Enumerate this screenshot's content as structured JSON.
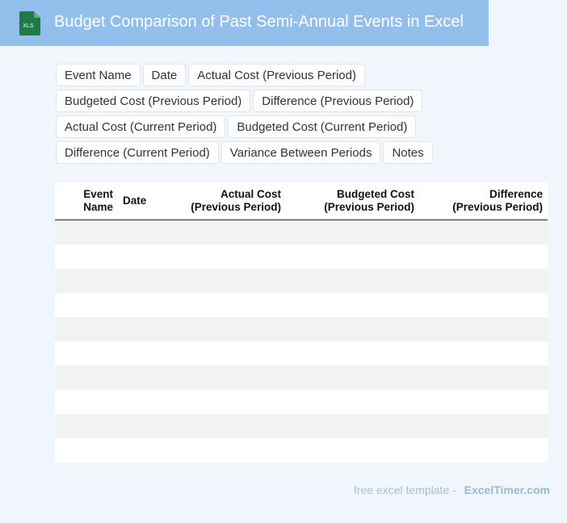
{
  "header": {
    "title": "Budget Comparison of Past Semi-Annual Events in Excel",
    "file_icon_label": "XLS",
    "background_color": "#93bfec",
    "icon_color": "#1f7a47"
  },
  "fields": [
    "Event Name",
    "Date",
    "Actual Cost (Previous Period)",
    "Budgeted Cost (Previous Period)",
    "Difference (Previous Period)",
    "Actual Cost (Current Period)",
    "Budgeted Cost (Current Period)",
    "Difference (Current Period)",
    "Variance Between Periods",
    "Notes"
  ],
  "table": {
    "columns": [
      {
        "line1": "Event",
        "line2": "Name"
      },
      {
        "line1": "Date",
        "line2": ""
      },
      {
        "line1": "Actual Cost",
        "line2": "(Previous Period)"
      },
      {
        "line1": "Budgeted Cost",
        "line2": "(Previous Period)"
      },
      {
        "line1": "Difference",
        "line2": "(Previous Period)"
      }
    ],
    "empty_rows": 10
  },
  "footer": {
    "lead": "free excel template -",
    "brand": "ExcelTimer.com"
  }
}
